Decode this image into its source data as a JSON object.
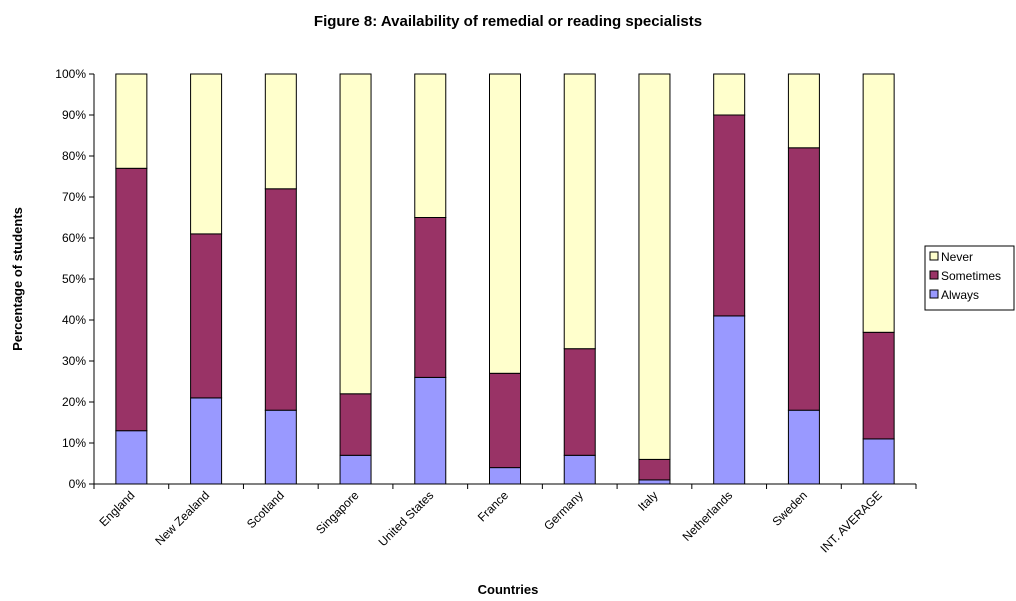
{
  "chart_data": {
    "type": "bar",
    "stacked": true,
    "title": "Figure 8: Availability of remedial or reading specialists",
    "xlabel": "Countries",
    "ylabel": "Percentage of students",
    "ylim": [
      0,
      100
    ],
    "yticks": [
      "0%",
      "10%",
      "20%",
      "30%",
      "40%",
      "50%",
      "60%",
      "70%",
      "80%",
      "90%",
      "100%"
    ],
    "grid": false,
    "legend_position": "right",
    "categories": [
      "England",
      "New Zealand",
      "Scotland",
      "Singapore",
      "United States",
      "France",
      "Germany",
      "Italy",
      "Netherlands",
      "Sweden",
      "INT. AVERAGE"
    ],
    "series": [
      {
        "name": "Always",
        "color": "#9999ff",
        "values": [
          13,
          21,
          18,
          7,
          26,
          4,
          7,
          1,
          41,
          18,
          11
        ]
      },
      {
        "name": "Sometimes",
        "color": "#993366",
        "values": [
          64,
          40,
          54,
          15,
          39,
          23,
          26,
          5,
          49,
          64,
          26
        ]
      },
      {
        "name": "Never",
        "color": "#ffffcc",
        "values": [
          23,
          39,
          28,
          78,
          35,
          73,
          67,
          94,
          10,
          18,
          63
        ]
      }
    ],
    "legend_order": [
      "Never",
      "Sometimes",
      "Always"
    ]
  }
}
